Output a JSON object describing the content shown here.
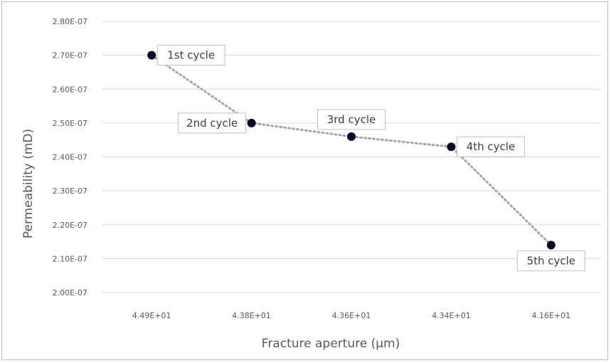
{
  "chart_data": {
    "type": "line",
    "title": "",
    "xlabel": "Fracture aperture (μm)",
    "ylabel": "Permeability (mD)",
    "categories": [
      "4.49E+01",
      "4.38E+01",
      "4.36E+01",
      "4.34E+01",
      "4.16E+01"
    ],
    "y_ticks": [
      "2.00E-07",
      "2.10E-07",
      "2.20E-07",
      "2.30E-07",
      "2.40E-07",
      "2.50E-07",
      "2.60E-07",
      "2.70E-07",
      "2.80E-07"
    ],
    "ylim": [
      2e-07,
      2.8e-07
    ],
    "grid": true,
    "series": [
      {
        "values": [
          2.7e-07,
          2.5e-07,
          2.46e-07,
          2.43e-07,
          2.14e-07
        ],
        "point_labels": [
          "1st cycle",
          "2nd cycle",
          "3rd cycle",
          "4th cycle",
          "5th cycle"
        ],
        "label_positions": [
          "right",
          "left",
          "above",
          "right",
          "below"
        ]
      }
    ],
    "colors": {
      "line": "#a6a6a6",
      "marker": "#0d0221",
      "grid": "#d9d9d9",
      "text": "#595959",
      "label_border": "#bfbfbf"
    }
  }
}
